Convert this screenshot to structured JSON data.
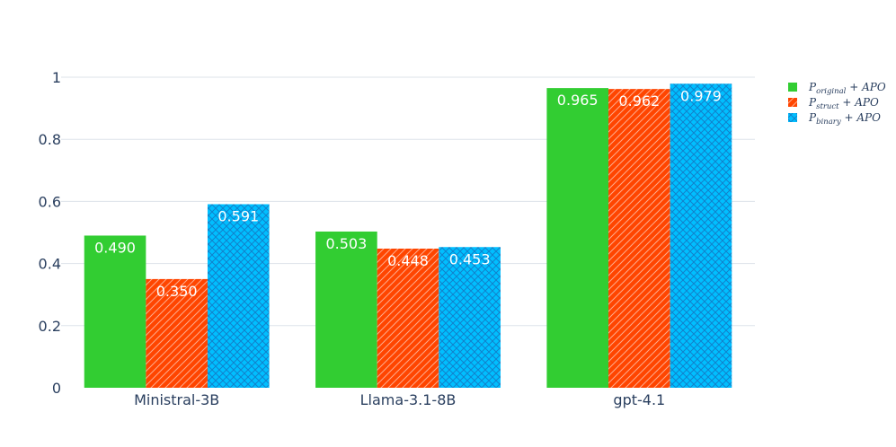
{
  "chart_data": {
    "type": "bar",
    "categories": [
      "Ministral-3B",
      "Llama-3.1-8B",
      "gpt-4.1"
    ],
    "series": [
      {
        "name": "P_original + APO",
        "legend_main": "P",
        "legend_sub": "original",
        "legend_rest": " + APO",
        "color": "#32cd32",
        "pattern": "none",
        "values": [
          0.49,
          0.503,
          0.965
        ],
        "labels": [
          "0.490",
          "0.503",
          "0.965"
        ]
      },
      {
        "name": "P_struct + APO",
        "legend_main": "P",
        "legend_sub": "struct",
        "legend_rest": " + APO",
        "color": "#ff4500",
        "pattern": "diagonal",
        "values": [
          0.35,
          0.448,
          0.962
        ],
        "labels": [
          "0.350",
          "0.448",
          "0.962"
        ]
      },
      {
        "name": "P_binary + APO",
        "legend_main": "P",
        "legend_sub": "binary",
        "legend_rest": " + APO",
        "color": "#00bfff",
        "pattern": "crosshatch",
        "values": [
          0.591,
          0.453,
          0.979
        ],
        "labels": [
          "0.591",
          "0.453",
          "0.979"
        ]
      }
    ],
    "yticks": [
      0,
      0.2,
      0.4,
      0.6,
      0.8,
      1
    ],
    "ytick_labels": [
      "0",
      "0.2",
      "0.4",
      "0.6",
      "0.8",
      "1"
    ],
    "ylim": [
      0,
      1
    ],
    "title": "",
    "xlabel": "",
    "ylabel": "",
    "grid": true,
    "legend_position": "top-right"
  }
}
